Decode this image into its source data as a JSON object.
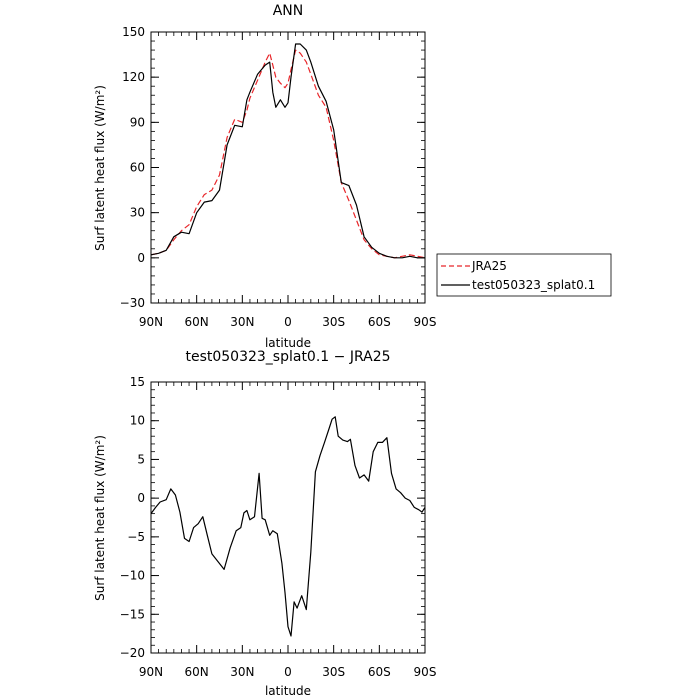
{
  "chart_data": [
    {
      "type": "line",
      "title": "ANN",
      "xlabel": "latitude",
      "ylabel": "Surf latent heat flux (W/m²)",
      "xlim": [
        90,
        -90
      ],
      "ylim": [
        -30,
        150
      ],
      "x_ticks": [
        90,
        60,
        30,
        0,
        -30,
        -60,
        -90
      ],
      "x_tick_labels": [
        "90N",
        "60N",
        "30N",
        "0",
        "30S",
        "60S",
        "90S"
      ],
      "y_ticks": [
        -30,
        0,
        30,
        60,
        90,
        120,
        150
      ],
      "y_tick_labels": [
        "−30",
        "0",
        "30",
        "60",
        "90",
        "120",
        "150"
      ],
      "legend": "right",
      "x": [
        90,
        85,
        80,
        75,
        70,
        65,
        60,
        55,
        50,
        45,
        40,
        35,
        30,
        27,
        25,
        20,
        15,
        12,
        10,
        8,
        5,
        2,
        0,
        -2,
        -5,
        -8,
        -12,
        -15,
        -20,
        -25,
        -30,
        -35,
        -40,
        -45,
        -50,
        -55,
        -60,
        -65,
        -70,
        -75,
        -80,
        -85,
        -90
      ],
      "series": [
        {
          "name": "JRA25",
          "color": "#e8262a",
          "dash": "dashed",
          "values": [
            2,
            3,
            5,
            12,
            18,
            22,
            34,
            42,
            45,
            55,
            80,
            92,
            90,
            98,
            106,
            118,
            130,
            136,
            128,
            120,
            116,
            113,
            116,
            125,
            138,
            136,
            130,
            122,
            108,
            100,
            78,
            50,
            38,
            25,
            12,
            6,
            2,
            1,
            0,
            1,
            2,
            1,
            0
          ]
        },
        {
          "name": "test050323_splat0.1",
          "color": "#000000",
          "dash": "solid",
          "values": [
            2,
            3,
            5,
            14,
            17,
            16,
            30,
            37,
            38,
            45,
            75,
            88,
            87,
            105,
            110,
            122,
            128,
            130,
            110,
            100,
            105,
            100,
            103,
            120,
            142,
            142,
            138,
            130,
            114,
            104,
            85,
            50,
            48,
            35,
            14,
            7,
            3,
            1,
            0,
            0,
            1,
            0,
            0
          ]
        }
      ]
    },
    {
      "type": "line",
      "title": "test050323_splat0.1 − JRA25",
      "xlabel": "latitude",
      "ylabel": "Surf latent heat flux (W/m²)",
      "xlim": [
        90,
        -90
      ],
      "ylim": [
        -20,
        15
      ],
      "x_ticks": [
        90,
        60,
        30,
        0,
        -30,
        -60,
        -90
      ],
      "x_tick_labels": [
        "90N",
        "60N",
        "30N",
        "0",
        "30S",
        "60S",
        "90S"
      ],
      "y_ticks": [
        -20,
        -15,
        -10,
        -5,
        0,
        5,
        10,
        15
      ],
      "y_tick_labels": [
        "−20",
        "−15",
        "−10",
        "−5",
        "0",
        "5",
        "10",
        "15"
      ],
      "x": [
        90,
        87,
        84,
        80,
        77,
        74,
        71,
        68,
        65,
        62,
        59,
        56,
        53,
        50,
        46,
        42,
        38,
        34,
        31,
        29,
        27,
        25,
        22,
        19,
        17,
        15,
        12,
        10,
        7,
        4,
        2,
        0,
        -2,
        -4,
        -6,
        -9,
        -12,
        -15,
        -18,
        -21,
        -24,
        -27,
        -29,
        -31,
        -33,
        -36,
        -39,
        -41,
        -44,
        -47,
        -50,
        -53,
        -56,
        -59,
        -62,
        -65,
        -68,
        -71,
        -74,
        -77,
        -80,
        -83,
        -86,
        -88,
        -90
      ],
      "series": [
        {
          "name": "test050323_splat0.1 − JRA25",
          "color": "#000000",
          "values": [
            -2,
            -1.2,
            -0.5,
            -0.2,
            1.2,
            0.4,
            -1.8,
            -5.2,
            -5.6,
            -3.8,
            -3.3,
            -2.4,
            -4.8,
            -7.2,
            -8.2,
            -9.2,
            -6.4,
            -4.2,
            -3.8,
            -1.9,
            -1.6,
            -2.8,
            -2.4,
            3.2,
            -2.6,
            -2.8,
            -4.8,
            -4.2,
            -4.6,
            -8.4,
            -12.2,
            -16.6,
            -17.8,
            -13.4,
            -14.2,
            -12.6,
            -14.4,
            -7.0,
            3.4,
            5.5,
            7.2,
            9.0,
            10.2,
            10.5,
            8.0,
            7.5,
            7.3,
            7.6,
            4.2,
            2.6,
            3.0,
            2.2,
            6.0,
            7.2,
            7.2,
            7.8,
            3.2,
            1.2,
            0.7,
            0,
            -0.3,
            -1.2,
            -1.5,
            -1.8,
            -1.2
          ]
        }
      ]
    }
  ]
}
